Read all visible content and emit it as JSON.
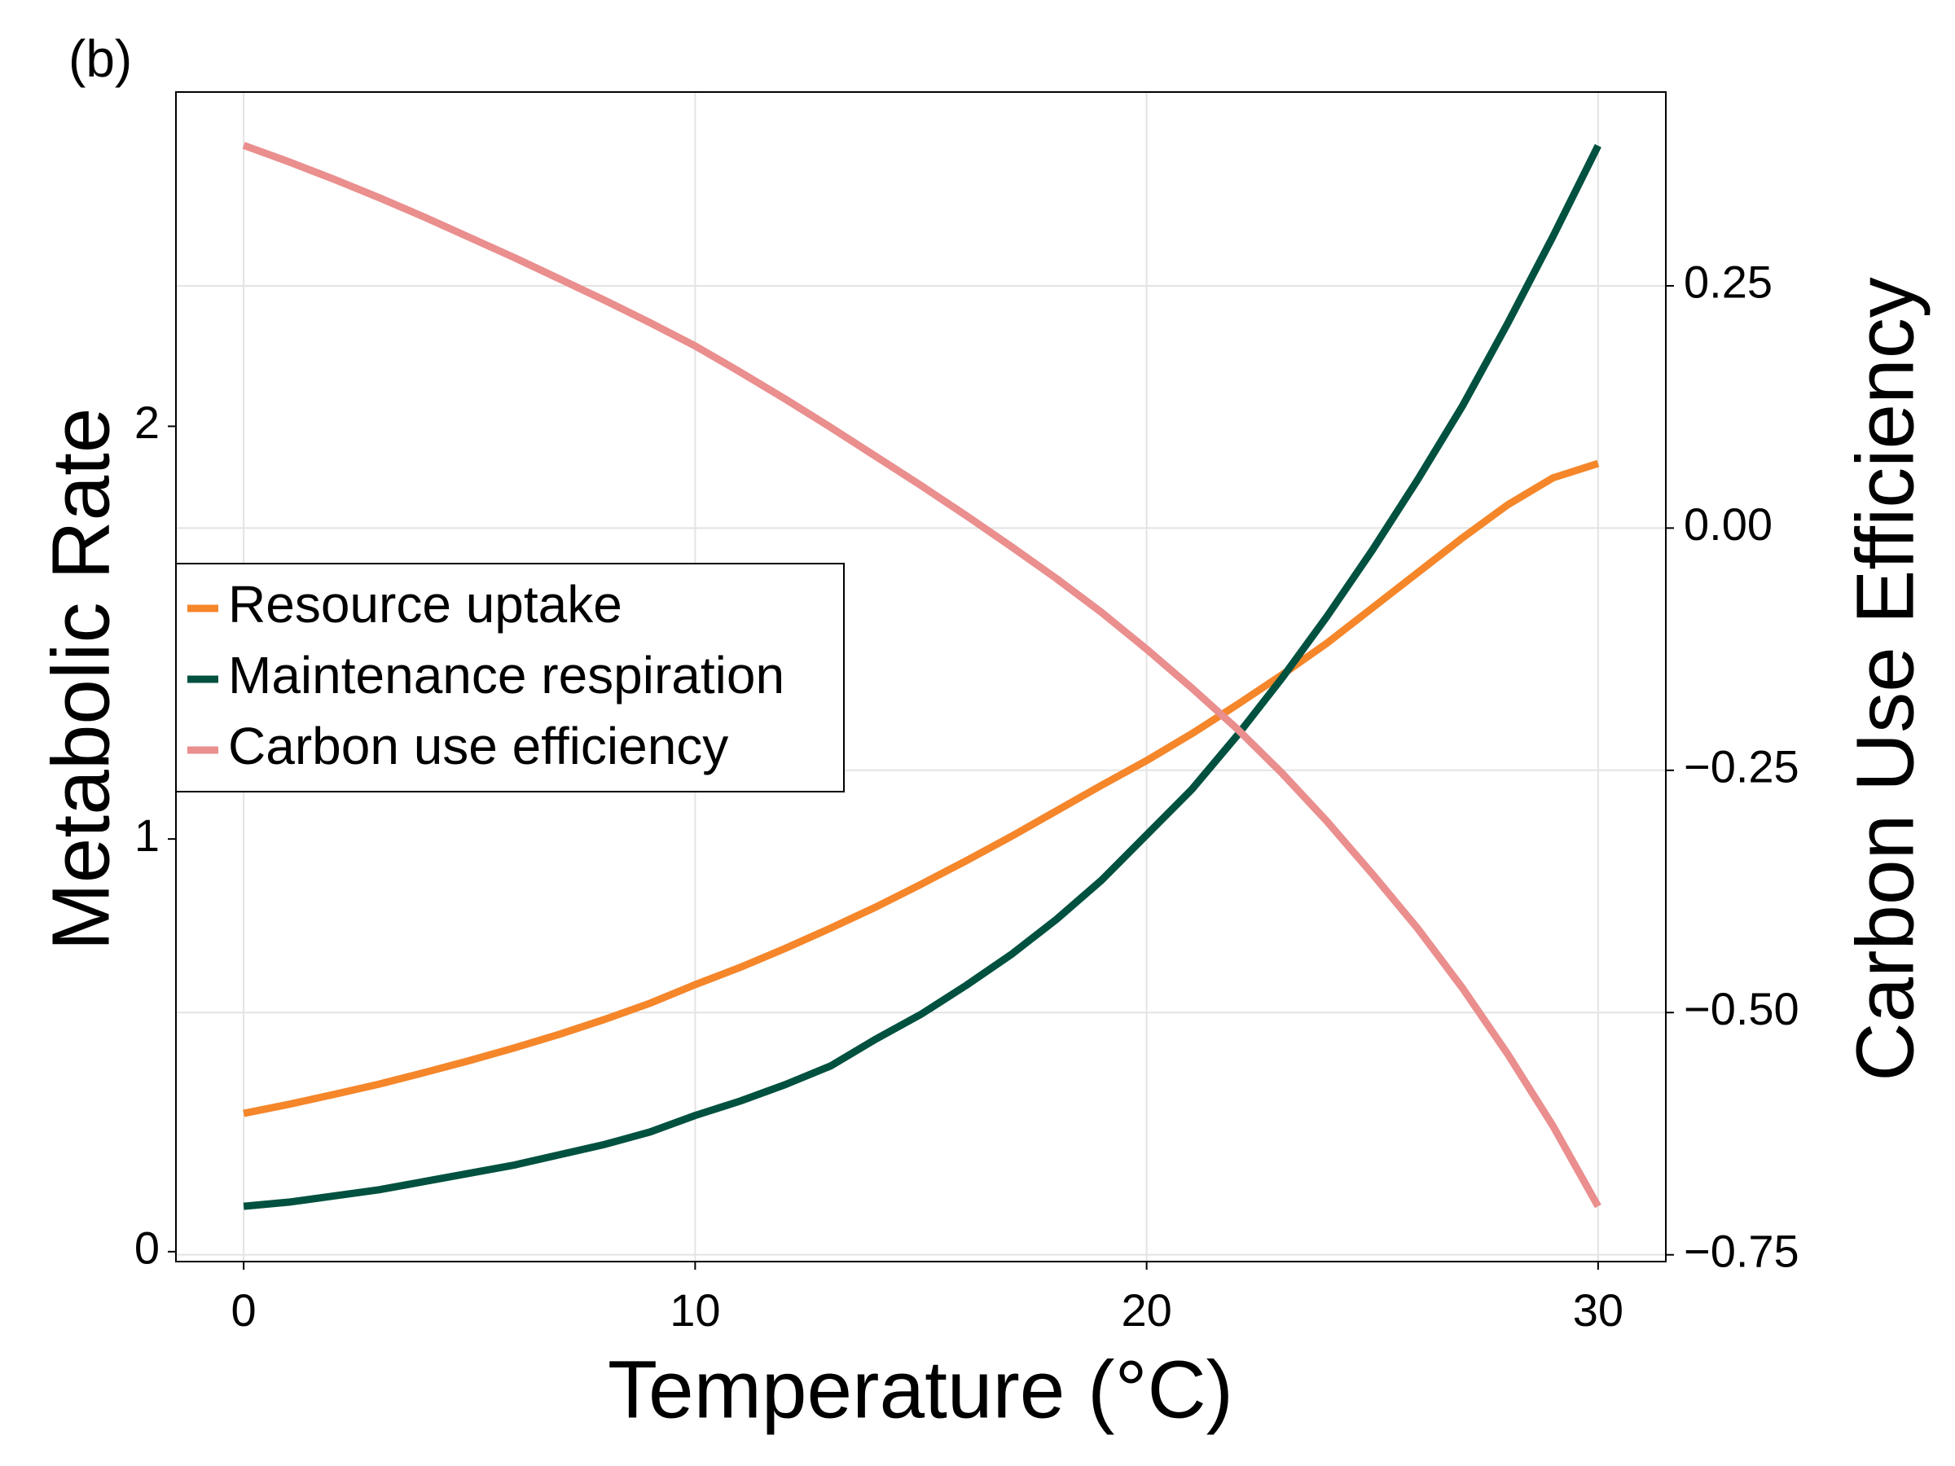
{
  "chart_data": {
    "type": "line",
    "panel_label": "(b)",
    "x_label": "Temperature (°C)",
    "y_label": "Metabolic Rate",
    "y2_label": "Carbon Use Efficiency",
    "x": [
      0,
      1,
      2,
      3,
      4,
      5,
      6,
      7,
      8,
      9,
      10,
      11,
      12,
      13,
      14,
      15,
      16,
      17,
      18,
      19,
      20,
      21,
      22,
      23,
      24,
      25,
      26,
      27,
      28,
      29,
      30
    ],
    "series": [
      {
        "name": "Resource uptake",
        "color": "#f5862a",
        "axis": "y",
        "values": [
          0.335,
          0.357,
          0.381,
          0.406,
          0.434,
          0.463,
          0.494,
          0.527,
          0.563,
          0.602,
          0.647,
          0.689,
          0.735,
          0.784,
          0.835,
          0.89,
          0.947,
          1.006,
          1.068,
          1.13,
          1.19,
          1.255,
          1.325,
          1.398,
          1.475,
          1.56,
          1.645,
          1.73,
          1.81,
          1.875,
          1.91
        ]
      },
      {
        "name": "Maintenance respiration",
        "color": "#00513f",
        "axis": "y",
        "values": [
          0.11,
          0.12,
          0.135,
          0.15,
          0.17,
          0.19,
          0.21,
          0.235,
          0.26,
          0.29,
          0.33,
          0.365,
          0.405,
          0.45,
          0.515,
          0.575,
          0.645,
          0.72,
          0.805,
          0.9,
          1.01,
          1.12,
          1.25,
          1.39,
          1.54,
          1.7,
          1.87,
          2.05,
          2.25,
          2.46,
          2.68
        ]
      },
      {
        "name": "Carbon use efficiency",
        "color": "#ea8e8e",
        "axis": "y2",
        "values": [
          0.395,
          0.378,
          0.36,
          0.341,
          0.321,
          0.3,
          0.279,
          0.257,
          0.235,
          0.212,
          0.188,
          0.161,
          0.133,
          0.104,
          0.074,
          0.044,
          0.013,
          -0.019,
          -0.052,
          -0.087,
          -0.125,
          -0.165,
          -0.207,
          -0.253,
          -0.303,
          -0.357,
          -0.413,
          -0.475,
          -0.543,
          -0.617,
          -0.7
        ]
      }
    ],
    "xlim": [
      -1.5,
      31.5
    ],
    "xticks": [
      0,
      10,
      20,
      30
    ],
    "ylim": [
      -0.024,
      2.81
    ],
    "yticks": [
      0,
      1,
      2
    ],
    "y2lim": [
      -0.757,
      0.45
    ],
    "y2ticks": [
      0.25,
      {
        "value": 0,
        "label": "0.00"
      },
      {
        "value": -0.25,
        "label": "−0.25"
      },
      {
        "value": -0.5,
        "label": "−0.50"
      },
      {
        "value": -0.75,
        "label": "−0.75"
      }
    ],
    "grid": true,
    "legend_position": "left"
  }
}
